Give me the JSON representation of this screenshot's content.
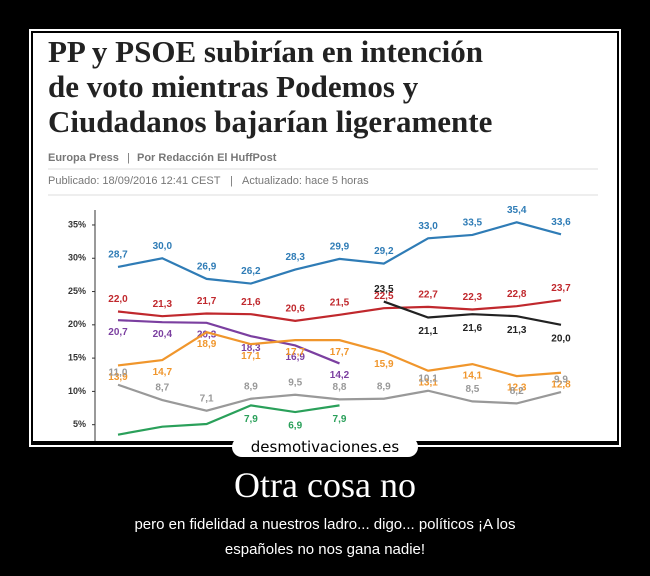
{
  "article": {
    "title": [
      "PP y PSOE subirían en intención",
      "de voto mientras Podemos y",
      "Ciudadanos bajarían ligeramente"
    ],
    "byline": [
      "Europa Press",
      "Por Redacción El HuffPost"
    ],
    "published": [
      "Publicado: 18/09/2016 12:41 CEST",
      "Actualizado: hace 5 horas"
    ]
  },
  "chart_data": {
    "type": "line",
    "categories": [
      null,
      null,
      null,
      null,
      null,
      null,
      null,
      null,
      null,
      null,
      null
    ],
    "ylim": [
      3,
      38
    ],
    "yticks": [
      {
        "value": 5,
        "label": "5%"
      },
      {
        "value": 10,
        "label": "10%"
      },
      {
        "value": 15,
        "label": "15%"
      },
      {
        "value": 20,
        "label": "20%"
      },
      {
        "value": 25,
        "label": "25%"
      },
      {
        "value": 30,
        "label": "30%"
      },
      {
        "value": 35,
        "label": "35%"
      }
    ],
    "series": [
      {
        "color": "#2f7cb6",
        "values": [
          28.7,
          30.0,
          26.9,
          26.2,
          28.3,
          29.9,
          29.2,
          33.0,
          33.5,
          35.4,
          33.6
        ],
        "value_labels": [
          "28,7",
          "30,0",
          "26,9",
          "26,2",
          "28,3",
          "29,9",
          "29,2",
          "33,0",
          "33,5",
          "35,4",
          "33,6"
        ]
      },
      {
        "color": "#c0282d",
        "values": [
          22.0,
          21.3,
          21.7,
          21.6,
          20.6,
          21.5,
          22.5,
          22.7,
          22.3,
          22.8,
          23.7
        ],
        "value_labels": [
          "22,0",
          "21,3",
          "21,7",
          "21,6",
          "20,6",
          "21,5",
          "22,5",
          "22,7",
          "22,3",
          "22,8",
          "23,7"
        ]
      },
      {
        "color": "#222222",
        "values": [
          null,
          null,
          null,
          null,
          null,
          null,
          23.5,
          21.1,
          21.6,
          21.3,
          20.0
        ],
        "value_labels": [
          null,
          null,
          null,
          null,
          null,
          null,
          "23,5",
          "21,1",
          "21,6",
          "21,3",
          "20,0"
        ]
      },
      {
        "color": "#7b3fa0",
        "values": [
          20.7,
          20.4,
          20.3,
          18.3,
          16.9,
          14.2,
          null,
          null,
          null,
          null,
          null
        ],
        "value_labels": [
          "20,7",
          "20,4",
          "20,3",
          "18,3",
          "16,9",
          "14,2",
          null,
          null,
          null,
          null,
          null
        ]
      },
      {
        "color": "#f0962c",
        "values": [
          13.9,
          14.7,
          18.9,
          17.1,
          17.7,
          17.7,
          15.9,
          13.1,
          14.1,
          12.3,
          12.8
        ],
        "value_labels": [
          "13,9",
          "14,7",
          "18,9",
          "17,1",
          "17,7",
          "17,7",
          "15,9",
          "13,1",
          "14,1",
          "12,3",
          "12,8"
        ]
      },
      {
        "color": "#999999",
        "values": [
          11.0,
          8.7,
          7.1,
          8.9,
          9.5,
          8.8,
          8.9,
          10.1,
          8.5,
          8.2,
          9.9
        ],
        "value_labels": [
          "11,0",
          "8,7",
          "7,1",
          "8,9",
          "9,5",
          "8,8",
          "8,9",
          "10,1",
          "8,5",
          "8,2",
          "9,9"
        ]
      },
      {
        "color": "#2aa05a",
        "values": [
          3.5,
          4.7,
          5.1,
          7.9,
          6.9,
          7.9,
          null,
          null,
          null,
          null,
          null
        ],
        "value_labels": [
          null,
          null,
          null,
          "7,9",
          "6,9",
          "7,9",
          null,
          null,
          null,
          null,
          null
        ]
      }
    ]
  },
  "poster": {
    "watermark": "desmotivaciones.es",
    "title": "Otra cosa no",
    "caption": [
      "pero en fidelidad a nuestros ladro... digo... políticos ¡A los",
      "españoles no nos gana nadie!"
    ]
  }
}
